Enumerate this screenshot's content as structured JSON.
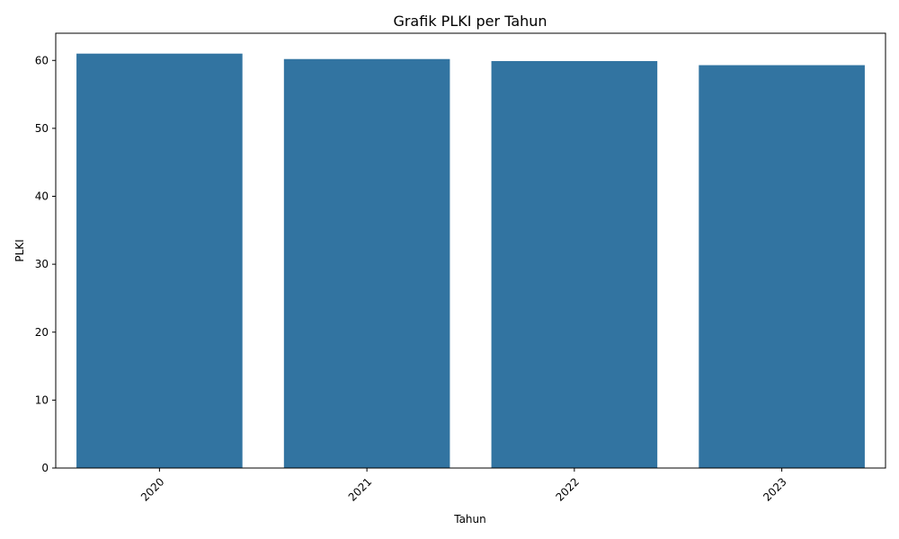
{
  "chart_data": {
    "type": "bar",
    "title": "Grafik PLKI per Tahun",
    "xlabel": "Tahun",
    "ylabel": "PLKI",
    "categories": [
      "2020",
      "2021",
      "2022",
      "2023"
    ],
    "values": [
      61.0,
      60.2,
      59.9,
      59.3
    ],
    "ylim": [
      0,
      64
    ],
    "yticks": [
      0,
      10,
      20,
      30,
      40,
      50,
      60
    ],
    "bar_color": "#3274a1",
    "grid": false,
    "legend": "none"
  }
}
